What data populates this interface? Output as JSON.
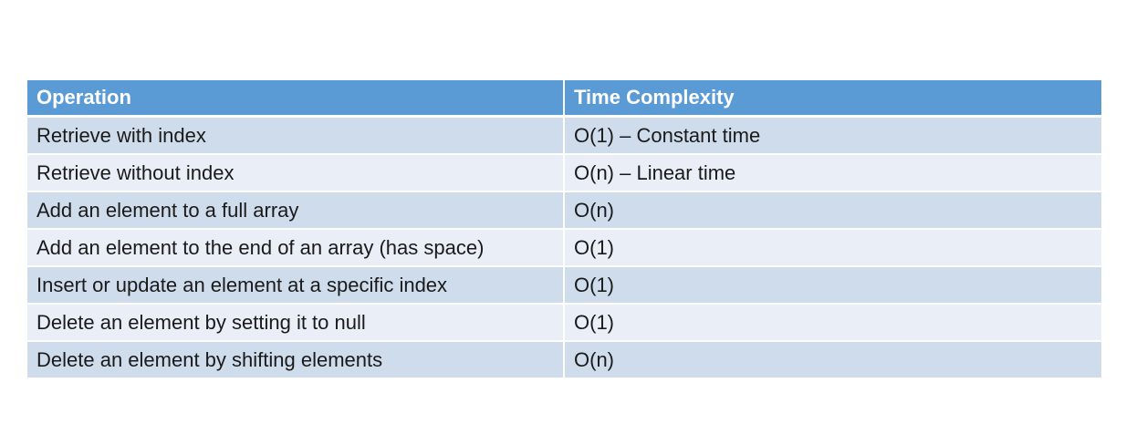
{
  "table": {
    "headers": [
      "Operation",
      "Time Complexity"
    ],
    "rows": [
      [
        "Retrieve with index",
        "O(1) – Constant time"
      ],
      [
        "Retrieve without index",
        "O(n) – Linear time"
      ],
      [
        "Add an element to a full array",
        "O(n)"
      ],
      [
        "Add an element to the end of an array (has space)",
        "O(1)"
      ],
      [
        "Insert or update an element at a specific index",
        "O(1)"
      ],
      [
        "Delete an element by setting it to null",
        "O(1)"
      ],
      [
        "Delete an element by shifting elements",
        "O(n)"
      ]
    ]
  },
  "colors": {
    "header_bg": "#5b9bd5",
    "row_odd_bg": "#cfdcec",
    "row_even_bg": "#e9eef7"
  }
}
